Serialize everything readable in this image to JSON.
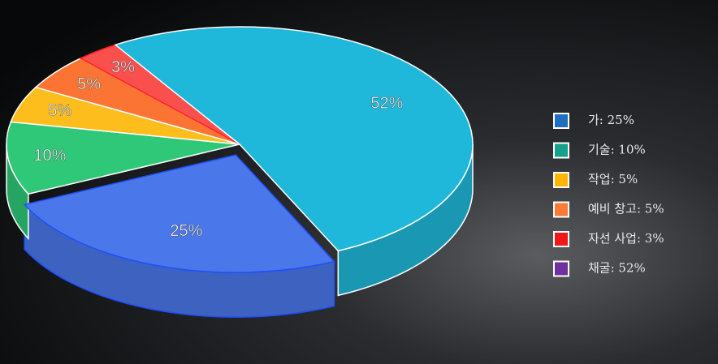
{
  "chart_data": {
    "type": "pie3d",
    "categories": [
      "가: 25%",
      "기술: 10%",
      "작업: 5%",
      "예비 창고: 5%",
      "자선 사업: 3%",
      "채굴: 52%"
    ],
    "values": [
      25,
      10,
      5,
      5,
      3,
      52
    ],
    "value_labels": [
      "25%",
      "10%",
      "5%",
      "5%",
      "3%",
      "52%"
    ],
    "colors": [
      "#4a78ea",
      "#2ec878",
      "#fdbd1c",
      "#fb7434",
      "#f9504e",
      "#1fb8da"
    ],
    "legend_colors": [
      "#1f6fc0",
      "#17a08c",
      "#ffb400",
      "#fb7a36",
      "#f01818",
      "#7030a0"
    ]
  }
}
